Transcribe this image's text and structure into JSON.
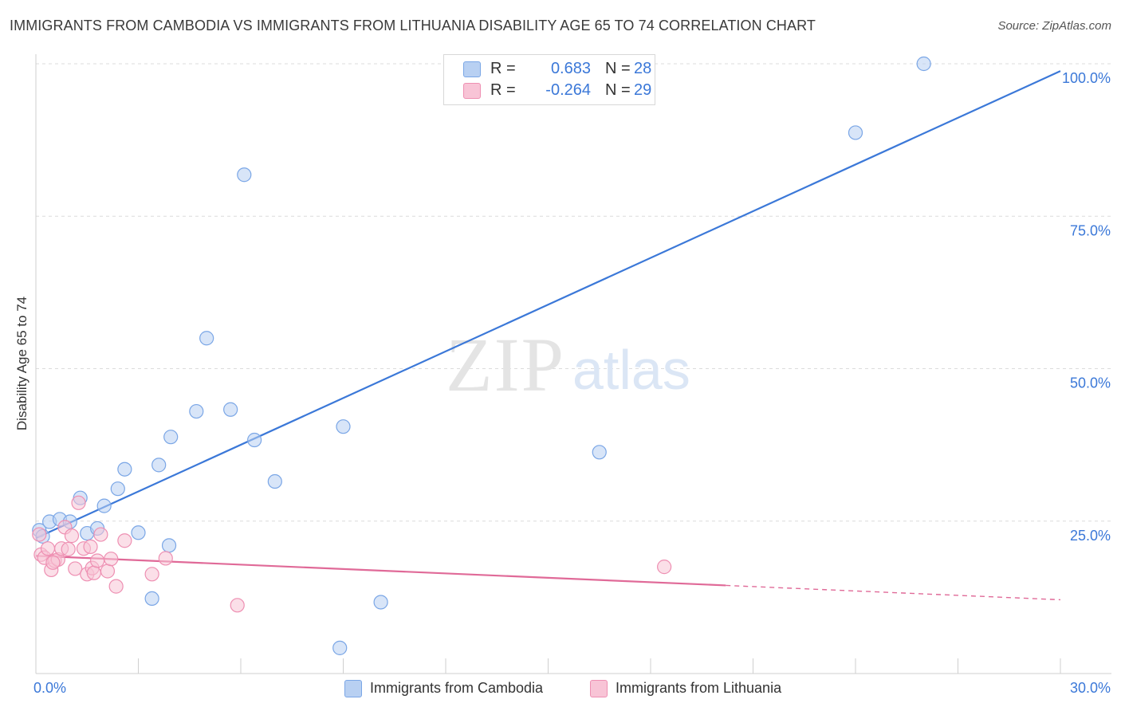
{
  "title": "IMMIGRANTS FROM CAMBODIA VS IMMIGRANTS FROM LITHUANIA DISABILITY AGE 65 TO 74 CORRELATION CHART",
  "source": "Source: ZipAtlas.com",
  "watermark": {
    "zip": "ZIP",
    "atlas": "atlas"
  },
  "colors": {
    "blue": "#3b78d8",
    "blue_fill": "#b8d0f2",
    "blue_stroke": "#7aa6e6",
    "pink": "#e06a98",
    "pink_fill": "#f8c4d6",
    "pink_stroke": "#ee8fb2",
    "grid": "#dcdcdc",
    "axis_text": "#3b78d8"
  },
  "legend": {
    "rows": [
      {
        "r_label": "R =",
        "r_value": "0.683",
        "n_label": "N =",
        "n_value": "28"
      },
      {
        "r_label": "R =",
        "r_value": "-0.264",
        "n_label": "N =",
        "n_value": "29"
      }
    ]
  },
  "bottom_legend": [
    {
      "label": "Immigrants from Cambodia"
    },
    {
      "label": "Immigrants from Lithuania"
    }
  ],
  "chart_data": {
    "type": "scatter",
    "title": "IMMIGRANTS FROM CAMBODIA VS IMMIGRANTS FROM LITHUANIA DISABILITY AGE 65 TO 74 CORRELATION CHART",
    "xlabel": "",
    "ylabel": "Disability Age 65 to 74",
    "xlim": [
      0,
      30
    ],
    "ylim": [
      0,
      100
    ],
    "x_tick_labels": [
      {
        "value": 0,
        "label": "0.0%"
      },
      {
        "value": 30,
        "label": "30.0%"
      }
    ],
    "y_tick_labels": [
      {
        "value": 25,
        "label": "25.0%"
      },
      {
        "value": 50,
        "label": "50.0%"
      },
      {
        "value": 75,
        "label": "75.0%"
      },
      {
        "value": 100,
        "label": "100.0%"
      }
    ],
    "grid": true,
    "series": [
      {
        "name": "Immigrants from Cambodia",
        "color": "blue",
        "trend": {
          "x": [
            0,
            30
          ],
          "y": [
            22.2,
            98.8
          ],
          "dashed_from": null
        },
        "points": [
          [
            0.1,
            23.5
          ],
          [
            0.4,
            24.9
          ],
          [
            0.7,
            25.3
          ],
          [
            1.0,
            24.9
          ],
          [
            1.3,
            28.8
          ],
          [
            1.5,
            23.0
          ],
          [
            1.8,
            23.8
          ],
          [
            2.0,
            27.5
          ],
          [
            2.4,
            30.3
          ],
          [
            2.6,
            33.5
          ],
          [
            3.0,
            23.1
          ],
          [
            3.4,
            12.3
          ],
          [
            3.6,
            34.2
          ],
          [
            3.9,
            21.0
          ],
          [
            3.95,
            38.8
          ],
          [
            4.7,
            43.0
          ],
          [
            5.0,
            55.0
          ],
          [
            5.7,
            43.3
          ],
          [
            6.1,
            81.8
          ],
          [
            6.4,
            38.3
          ],
          [
            7.0,
            31.5
          ],
          [
            8.9,
            4.2
          ],
          [
            9.0,
            40.5
          ],
          [
            10.1,
            11.7
          ],
          [
            16.5,
            36.3
          ],
          [
            24.0,
            88.7
          ],
          [
            26.0,
            100.0
          ],
          [
            0.2,
            22.5
          ]
        ]
      },
      {
        "name": "Immigrants from Lithuania",
        "color": "pink",
        "trend": {
          "x": [
            0,
            30
          ],
          "y": [
            19.3,
            12.1
          ],
          "dashed_from": 20.2
        },
        "points": [
          [
            0.1,
            22.8
          ],
          [
            0.15,
            19.5
          ],
          [
            0.25,
            19.0
          ],
          [
            0.35,
            20.5
          ],
          [
            0.45,
            17.0
          ],
          [
            0.55,
            18.5
          ],
          [
            0.65,
            18.7
          ],
          [
            0.75,
            20.5
          ],
          [
            0.85,
            24.0
          ],
          [
            0.95,
            20.4
          ],
          [
            1.05,
            22.6
          ],
          [
            1.15,
            17.2
          ],
          [
            1.25,
            28.0
          ],
          [
            1.4,
            20.5
          ],
          [
            1.5,
            16.3
          ],
          [
            1.6,
            20.8
          ],
          [
            1.65,
            17.3
          ],
          [
            1.7,
            16.5
          ],
          [
            1.8,
            18.5
          ],
          [
            1.9,
            22.8
          ],
          [
            2.1,
            16.8
          ],
          [
            2.2,
            18.8
          ],
          [
            2.35,
            14.3
          ],
          [
            2.6,
            21.8
          ],
          [
            3.4,
            16.3
          ],
          [
            3.8,
            18.9
          ],
          [
            5.9,
            11.2
          ],
          [
            18.4,
            17.5
          ],
          [
            0.5,
            18.2
          ]
        ]
      }
    ]
  }
}
